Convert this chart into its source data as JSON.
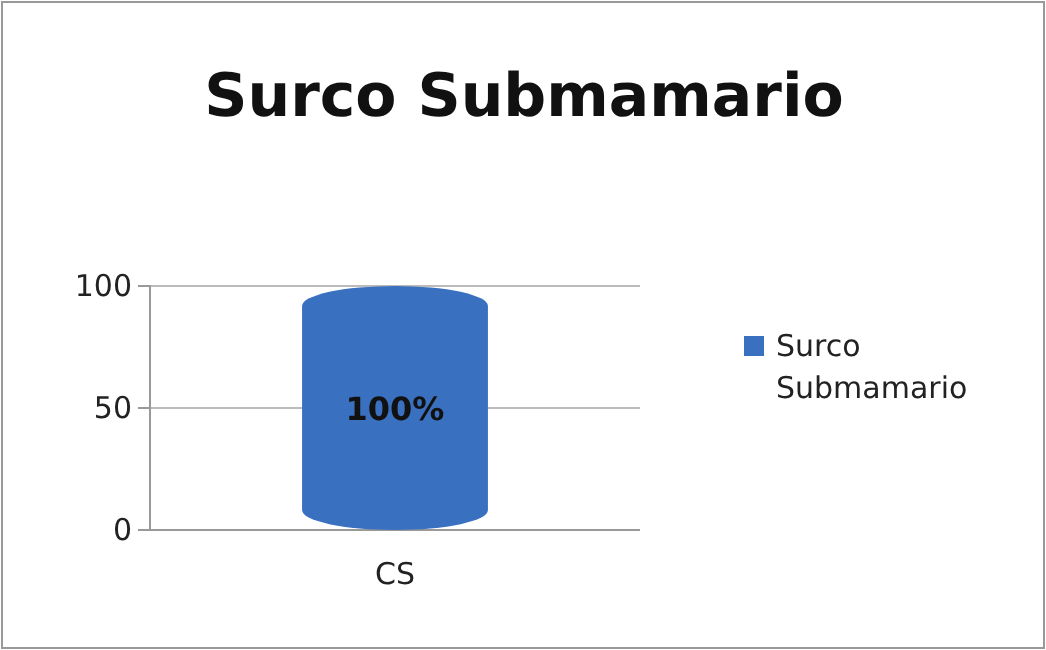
{
  "chart_data": {
    "type": "bar",
    "title": "Surco Submamario",
    "categories": [
      "CS"
    ],
    "series": [
      {
        "name": "Surco Submamario",
        "color": "#3a70c0",
        "values": [
          100
        ],
        "value_labels": [
          "100%"
        ]
      }
    ],
    "ylim": [
      0,
      100
    ],
    "yticks": [
      0,
      50,
      100
    ],
    "grid": "y",
    "legend": "right"
  }
}
